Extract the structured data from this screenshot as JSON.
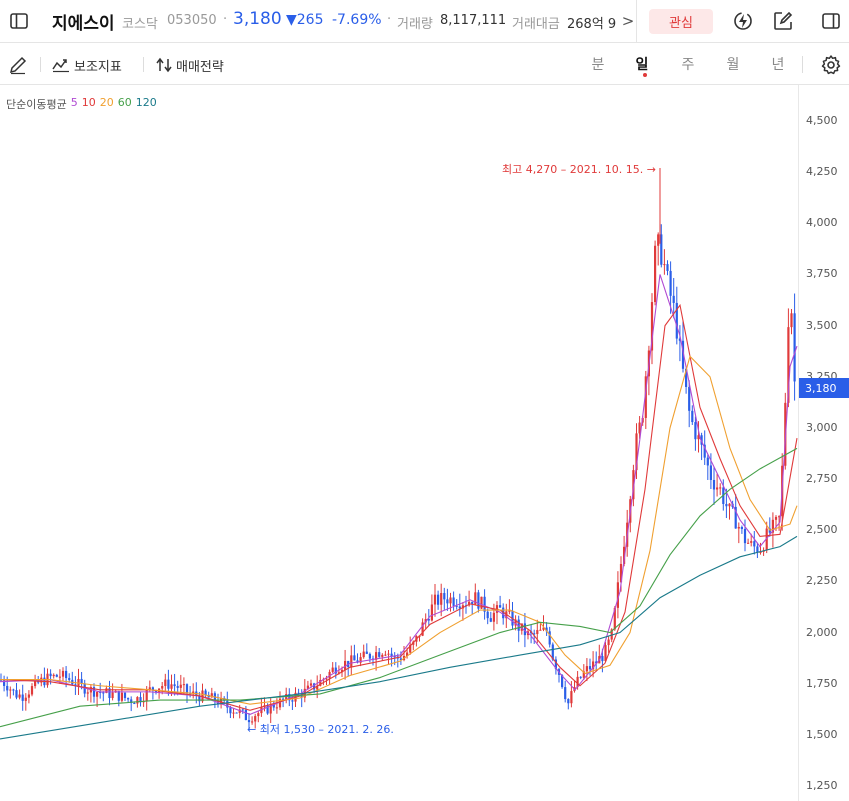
{
  "header": {
    "name": "지에스이",
    "market": "코스닥",
    "code": "053050",
    "sep": "·",
    "price": "3,180",
    "change": "▼265",
    "change_pct": "-7.69%",
    "volume_label": "거래량",
    "volume": "8,117,111",
    "amount_label": "거래대금",
    "amount": "268억 9",
    "more": ">",
    "interest_button": "관심"
  },
  "toolbar": {
    "aux_label": "보조지표",
    "strategy_label": "매매전략",
    "periods": [
      "분",
      "일",
      "주",
      "월",
      "년"
    ],
    "active_period": "일"
  },
  "legend": {
    "label": "단순이동평균",
    "ma": [
      {
        "name": "5",
        "color": "#b04ad3"
      },
      {
        "name": "10",
        "color": "#e03a3a"
      },
      {
        "name": "20",
        "color": "#f0a030"
      },
      {
        "name": "60",
        "color": "#46a04a"
      },
      {
        "name": "120",
        "color": "#1a7a8a"
      }
    ]
  },
  "colors": {
    "up": "#e03a3a",
    "down": "#2a5ee8",
    "accent": "#2a5ee8"
  },
  "chart_data": {
    "type": "candlestick",
    "y_ticks": [
      "4,500",
      "4,250",
      "4,000",
      "3,750",
      "3,500",
      "3,250",
      "3,000",
      "2,750",
      "2,500",
      "2,250",
      "2,000",
      "1,750",
      "1,500",
      "1,250"
    ],
    "ylim": [
      1250,
      4500
    ],
    "current_price": "3,180",
    "high_annotation": "최고 4,270 – 2021. 10. 15. →",
    "low_annotation": "← 최저 1,530 – 2021. 2. 26.",
    "close_path": [
      [
        0,
        1770
      ],
      [
        8,
        1740
      ],
      [
        15,
        1700
      ],
      [
        22,
        1690
      ],
      [
        30,
        1720
      ],
      [
        40,
        1760
      ],
      [
        50,
        1780
      ],
      [
        60,
        1790
      ],
      [
        70,
        1770
      ],
      [
        80,
        1740
      ],
      [
        90,
        1720
      ],
      [
        100,
        1710
      ],
      [
        110,
        1700
      ],
      [
        120,
        1690
      ],
      [
        130,
        1670
      ],
      [
        140,
        1680
      ],
      [
        150,
        1720
      ],
      [
        160,
        1740
      ],
      [
        170,
        1750
      ],
      [
        180,
        1730
      ],
      [
        190,
        1700
      ],
      [
        200,
        1690
      ],
      [
        210,
        1680
      ],
      [
        220,
        1660
      ],
      [
        230,
        1630
      ],
      [
        240,
        1610
      ],
      [
        248,
        1580
      ],
      [
        255,
        1600
      ],
      [
        265,
        1620
      ],
      [
        275,
        1650
      ],
      [
        285,
        1670
      ],
      [
        295,
        1690
      ],
      [
        305,
        1710
      ],
      [
        315,
        1740
      ],
      [
        325,
        1780
      ],
      [
        335,
        1830
      ],
      [
        345,
        1850
      ],
      [
        355,
        1860
      ],
      [
        365,
        1880
      ],
      [
        375,
        1900
      ],
      [
        385,
        1920
      ],
      [
        395,
        1870
      ],
      [
        405,
        1890
      ],
      [
        415,
        1950
      ],
      [
        425,
        2060
      ],
      [
        435,
        2150
      ],
      [
        445,
        2170
      ],
      [
        455,
        2160
      ],
      [
        465,
        2150
      ],
      [
        475,
        2170
      ],
      [
        485,
        2120
      ],
      [
        490,
        2080
      ],
      [
        500,
        2110
      ],
      [
        510,
        2070
      ],
      [
        520,
        2020
      ],
      [
        530,
        1980
      ],
      [
        540,
        2000
      ],
      [
        548,
        2010
      ],
      [
        553,
        1880
      ],
      [
        560,
        1790
      ],
      [
        568,
        1650
      ],
      [
        575,
        1740
      ],
      [
        585,
        1810
      ],
      [
        595,
        1850
      ],
      [
        605,
        1900
      ],
      [
        612,
        1990
      ],
      [
        620,
        2300
      ],
      [
        628,
        2600
      ],
      [
        635,
        2900
      ],
      [
        642,
        3050
      ],
      [
        650,
        3500
      ],
      [
        656,
        3900
      ],
      [
        662,
        3850
      ],
      [
        668,
        3700
      ],
      [
        675,
        3550
      ],
      [
        682,
        3300
      ],
      [
        690,
        3050
      ],
      [
        698,
        2950
      ],
      [
        705,
        2850
      ],
      [
        712,
        2750
      ],
      [
        720,
        2700
      ],
      [
        728,
        2600
      ],
      [
        736,
        2550
      ],
      [
        744,
        2460
      ],
      [
        752,
        2420
      ],
      [
        760,
        2410
      ],
      [
        768,
        2480
      ],
      [
        775,
        2520
      ],
      [
        780,
        2560
      ],
      [
        785,
        3100
      ],
      [
        790,
        3750
      ],
      [
        795,
        3180
      ]
    ],
    "ma_paths": [
      {
        "name": "5",
        "points": [
          [
            0,
            1760
          ],
          [
            50,
            1770
          ],
          [
            100,
            1710
          ],
          [
            150,
            1710
          ],
          [
            200,
            1690
          ],
          [
            250,
            1600
          ],
          [
            300,
            1700
          ],
          [
            350,
            1850
          ],
          [
            400,
            1890
          ],
          [
            430,
            2080
          ],
          [
            470,
            2160
          ],
          [
            500,
            2100
          ],
          [
            530,
            1990
          ],
          [
            560,
            1800
          ],
          [
            575,
            1720
          ],
          [
            600,
            1870
          ],
          [
            620,
            2200
          ],
          [
            640,
            2950
          ],
          [
            660,
            3750
          ],
          [
            680,
            3450
          ],
          [
            700,
            2950
          ],
          [
            720,
            2750
          ],
          [
            740,
            2550
          ],
          [
            760,
            2420
          ],
          [
            780,
            2540
          ],
          [
            790,
            3300
          ],
          [
            797,
            3400
          ]
        ]
      },
      {
        "name": "10",
        "points": [
          [
            0,
            1770
          ],
          [
            50,
            1760
          ],
          [
            100,
            1720
          ],
          [
            150,
            1720
          ],
          [
            200,
            1690
          ],
          [
            250,
            1620
          ],
          [
            300,
            1690
          ],
          [
            350,
            1830
          ],
          [
            400,
            1880
          ],
          [
            430,
            2040
          ],
          [
            470,
            2140
          ],
          [
            500,
            2110
          ],
          [
            530,
            2010
          ],
          [
            560,
            1830
          ],
          [
            580,
            1740
          ],
          [
            605,
            1850
          ],
          [
            625,
            2100
          ],
          [
            645,
            2700
          ],
          [
            665,
            3500
          ],
          [
            680,
            3600
          ],
          [
            700,
            3100
          ],
          [
            720,
            2850
          ],
          [
            740,
            2620
          ],
          [
            760,
            2470
          ],
          [
            780,
            2480
          ],
          [
            797,
            2950
          ]
        ]
      },
      {
        "name": "20",
        "points": [
          [
            0,
            1770
          ],
          [
            50,
            1770
          ],
          [
            100,
            1740
          ],
          [
            150,
            1720
          ],
          [
            200,
            1700
          ],
          [
            250,
            1650
          ],
          [
            300,
            1680
          ],
          [
            350,
            1790
          ],
          [
            400,
            1860
          ],
          [
            440,
            2000
          ],
          [
            480,
            2110
          ],
          [
            510,
            2110
          ],
          [
            540,
            2050
          ],
          [
            565,
            1890
          ],
          [
            585,
            1800
          ],
          [
            610,
            1840
          ],
          [
            630,
            2000
          ],
          [
            650,
            2400
          ],
          [
            670,
            3000
          ],
          [
            690,
            3350
          ],
          [
            710,
            3250
          ],
          [
            730,
            2900
          ],
          [
            750,
            2650
          ],
          [
            770,
            2500
          ],
          [
            790,
            2530
          ],
          [
            797,
            2620
          ]
        ]
      },
      {
        "name": "60",
        "points": [
          [
            0,
            1540
          ],
          [
            80,
            1640
          ],
          [
            160,
            1670
          ],
          [
            240,
            1670
          ],
          [
            320,
            1700
          ],
          [
            380,
            1780
          ],
          [
            440,
            1890
          ],
          [
            500,
            2000
          ],
          [
            540,
            2050
          ],
          [
            580,
            2030
          ],
          [
            610,
            2000
          ],
          [
            640,
            2130
          ],
          [
            670,
            2380
          ],
          [
            700,
            2570
          ],
          [
            730,
            2700
          ],
          [
            760,
            2800
          ],
          [
            797,
            2900
          ]
        ]
      },
      {
        "name": "120",
        "points": [
          [
            0,
            1480
          ],
          [
            100,
            1560
          ],
          [
            200,
            1640
          ],
          [
            300,
            1700
          ],
          [
            380,
            1760
          ],
          [
            450,
            1830
          ],
          [
            520,
            1890
          ],
          [
            580,
            1940
          ],
          [
            620,
            2000
          ],
          [
            660,
            2170
          ],
          [
            700,
            2280
          ],
          [
            740,
            2370
          ],
          [
            780,
            2420
          ],
          [
            797,
            2470
          ]
        ]
      }
    ]
  }
}
